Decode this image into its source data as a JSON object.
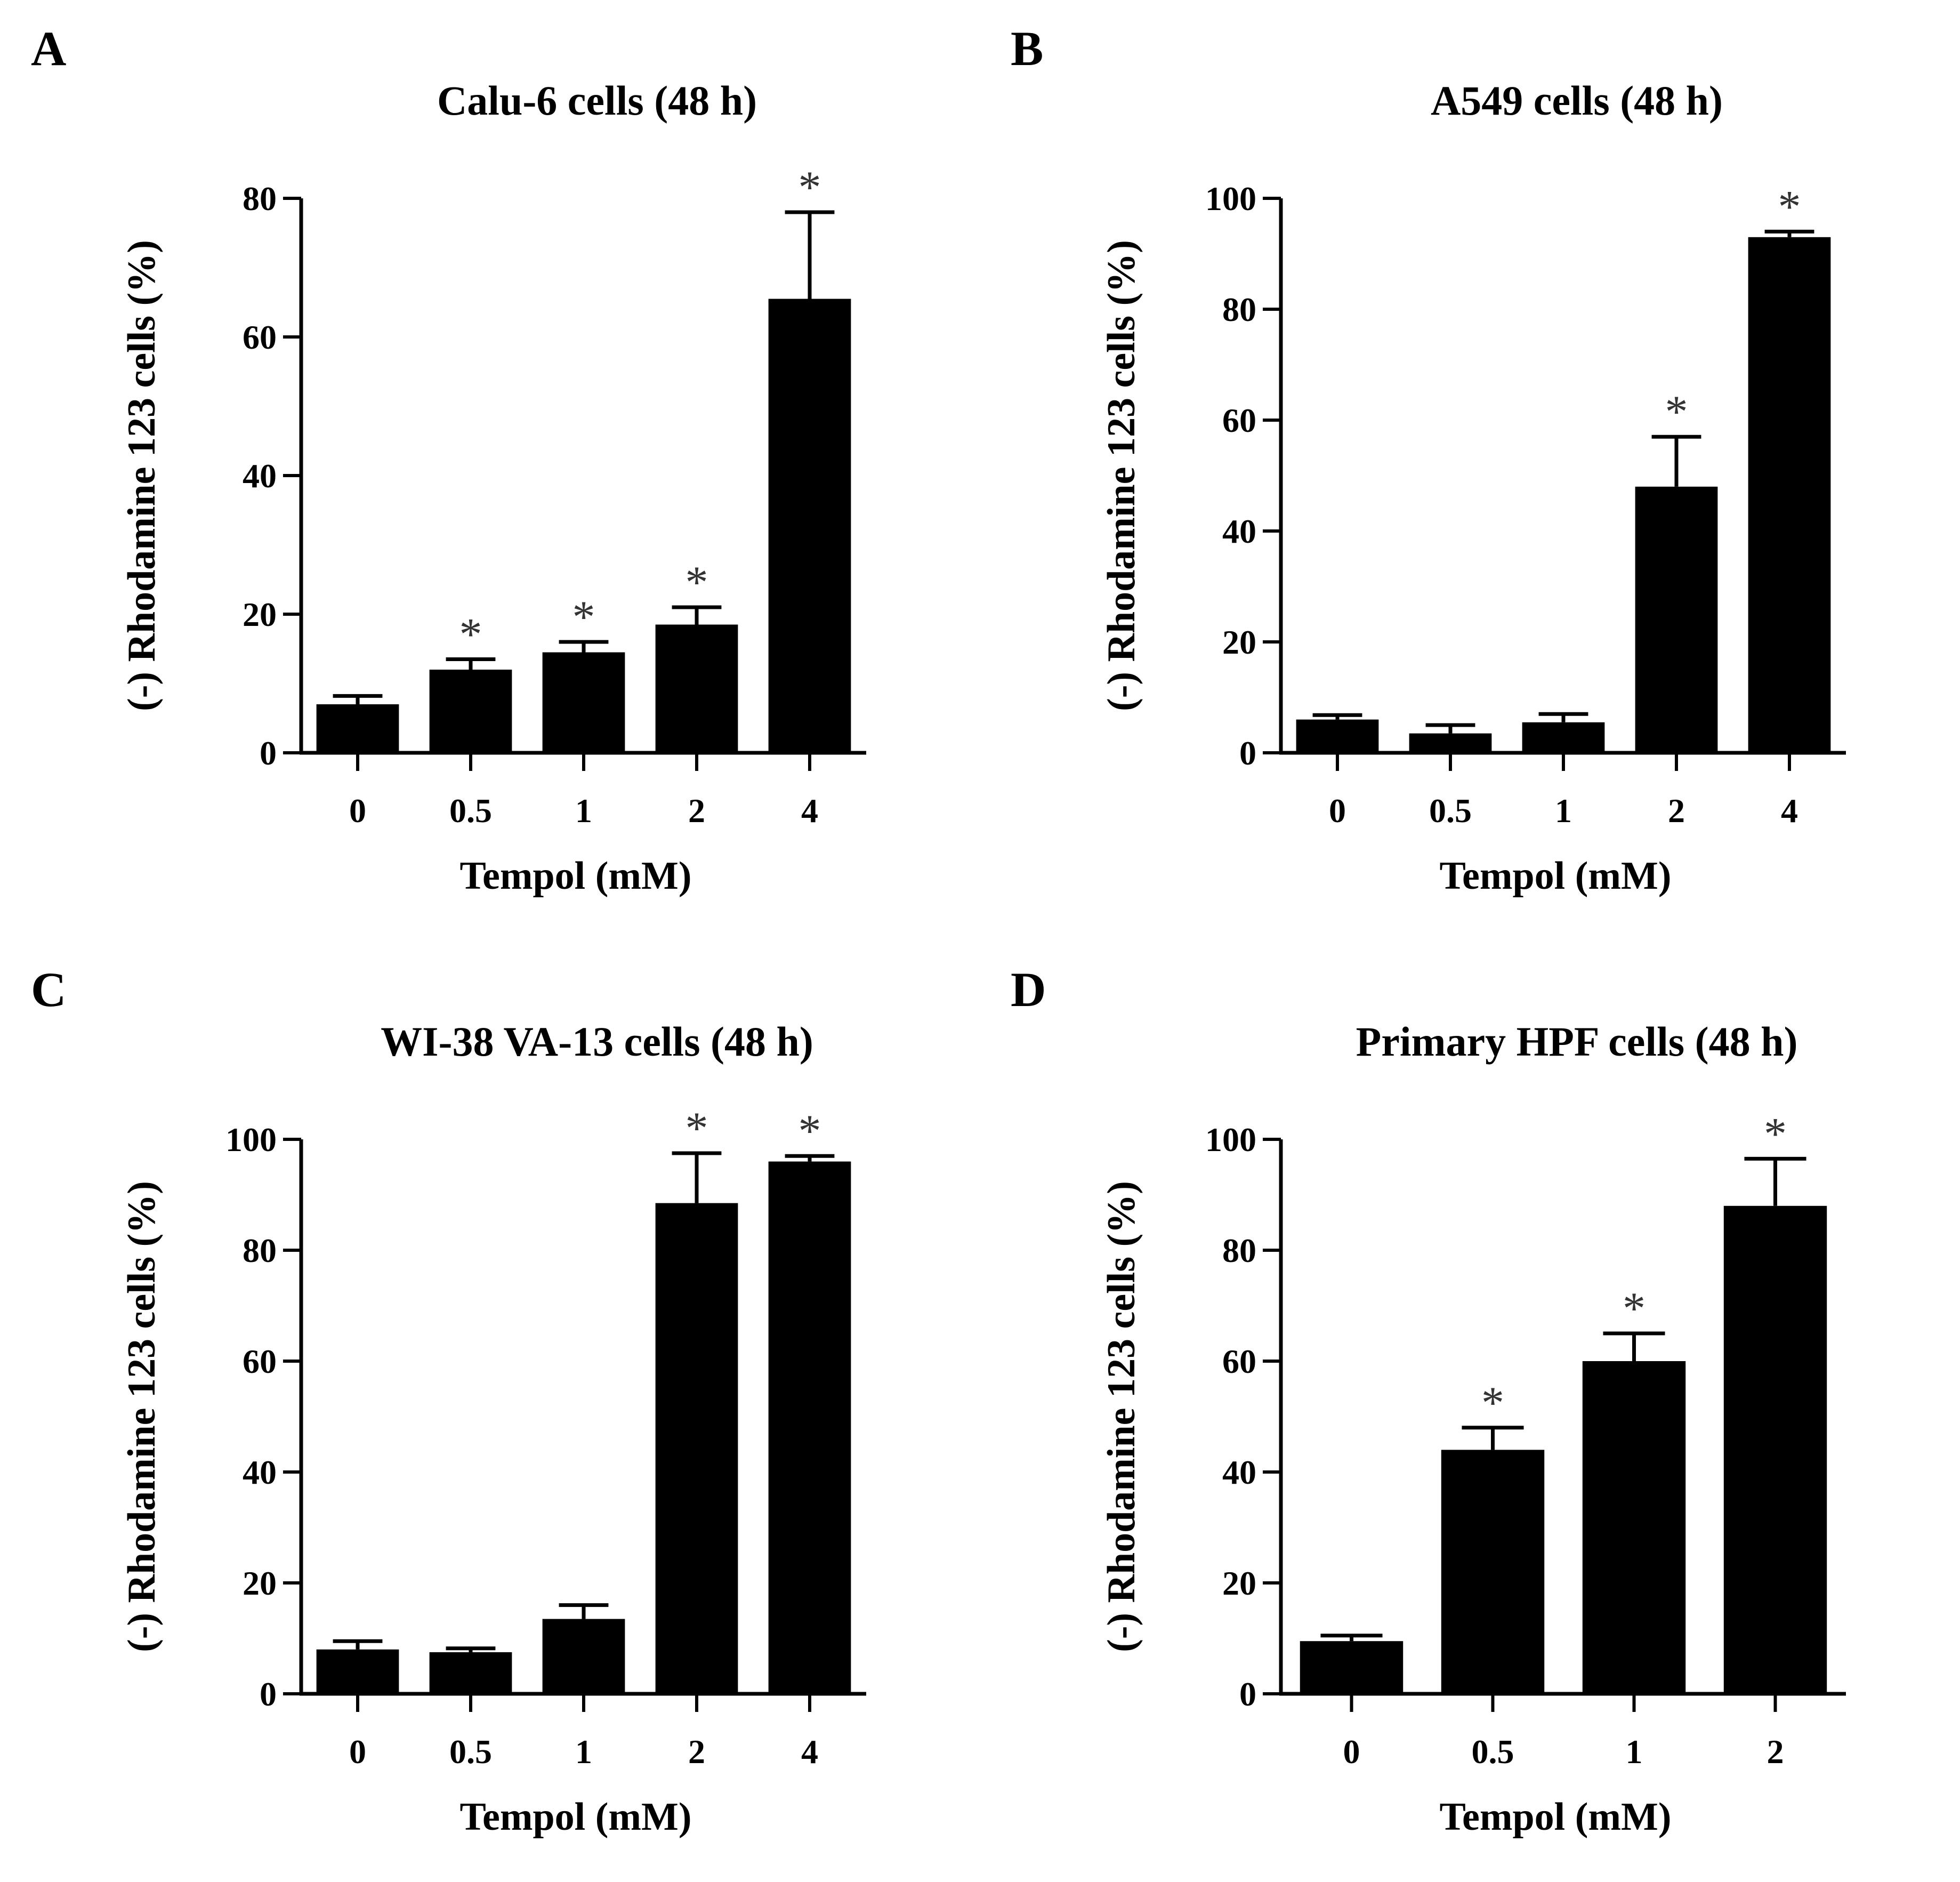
{
  "chart_data": [
    {
      "type": "bar",
      "panel_label": "A",
      "title": "Calu-6 cells (48 h)",
      "xlabel": "Tempol (mM)",
      "ylabel": "(-) Rhodamine 123 cells (%)",
      "categories": [
        "0",
        "0.5",
        "1",
        "2",
        "4"
      ],
      "values": [
        7,
        12,
        14.5,
        18.5,
        65.5
      ],
      "errors": [
        1.2,
        1.5,
        1.5,
        2.5,
        12.5
      ],
      "significant": [
        false,
        true,
        true,
        true,
        true
      ],
      "ylim": [
        0,
        80
      ],
      "yticks": [
        0,
        20,
        40,
        60,
        80
      ],
      "star_symbol": "*"
    },
    {
      "type": "bar",
      "panel_label": "B",
      "title": "A549 cells (48 h)",
      "xlabel": "Tempol (mM)",
      "ylabel": "(-) Rhodamine 123 cells (%)",
      "categories": [
        "0",
        "0.5",
        "1",
        "2",
        "4"
      ],
      "values": [
        6,
        3.5,
        5.5,
        48,
        93
      ],
      "errors": [
        0.8,
        1.5,
        1.5,
        9,
        1
      ],
      "significant": [
        false,
        false,
        false,
        true,
        true
      ],
      "ylim": [
        0,
        100
      ],
      "yticks": [
        0,
        20,
        40,
        60,
        80,
        100
      ],
      "star_symbol": "*"
    },
    {
      "type": "bar",
      "panel_label": "C",
      "title": "WI-38 VA-13 cells (48 h)",
      "xlabel": "Tempol (mM)",
      "ylabel": "(-) Rhodamine 123 cells (%)",
      "categories": [
        "0",
        "0.5",
        "1",
        "2",
        "4"
      ],
      "values": [
        8,
        7.5,
        13.5,
        88.5,
        96
      ],
      "errors": [
        1.5,
        0.7,
        2.5,
        9,
        1
      ],
      "significant": [
        false,
        false,
        false,
        true,
        true
      ],
      "ylim": [
        0,
        100
      ],
      "yticks": [
        0,
        20,
        40,
        60,
        80,
        100
      ],
      "star_symbol": "*"
    },
    {
      "type": "bar",
      "panel_label": "D",
      "title": "Primary HPF cells (48 h)",
      "xlabel": "Tempol (mM)",
      "ylabel": "(-) Rhodamine 123 cells (%)",
      "categories": [
        "0",
        "0.5",
        "1",
        "2"
      ],
      "values": [
        9.5,
        44,
        60,
        88
      ],
      "errors": [
        1,
        4,
        5,
        8.5
      ],
      "significant": [
        false,
        true,
        true,
        true
      ],
      "ylim": [
        0,
        100
      ],
      "yticks": [
        0,
        20,
        40,
        60,
        80,
        100
      ],
      "star_symbol": "*"
    }
  ]
}
